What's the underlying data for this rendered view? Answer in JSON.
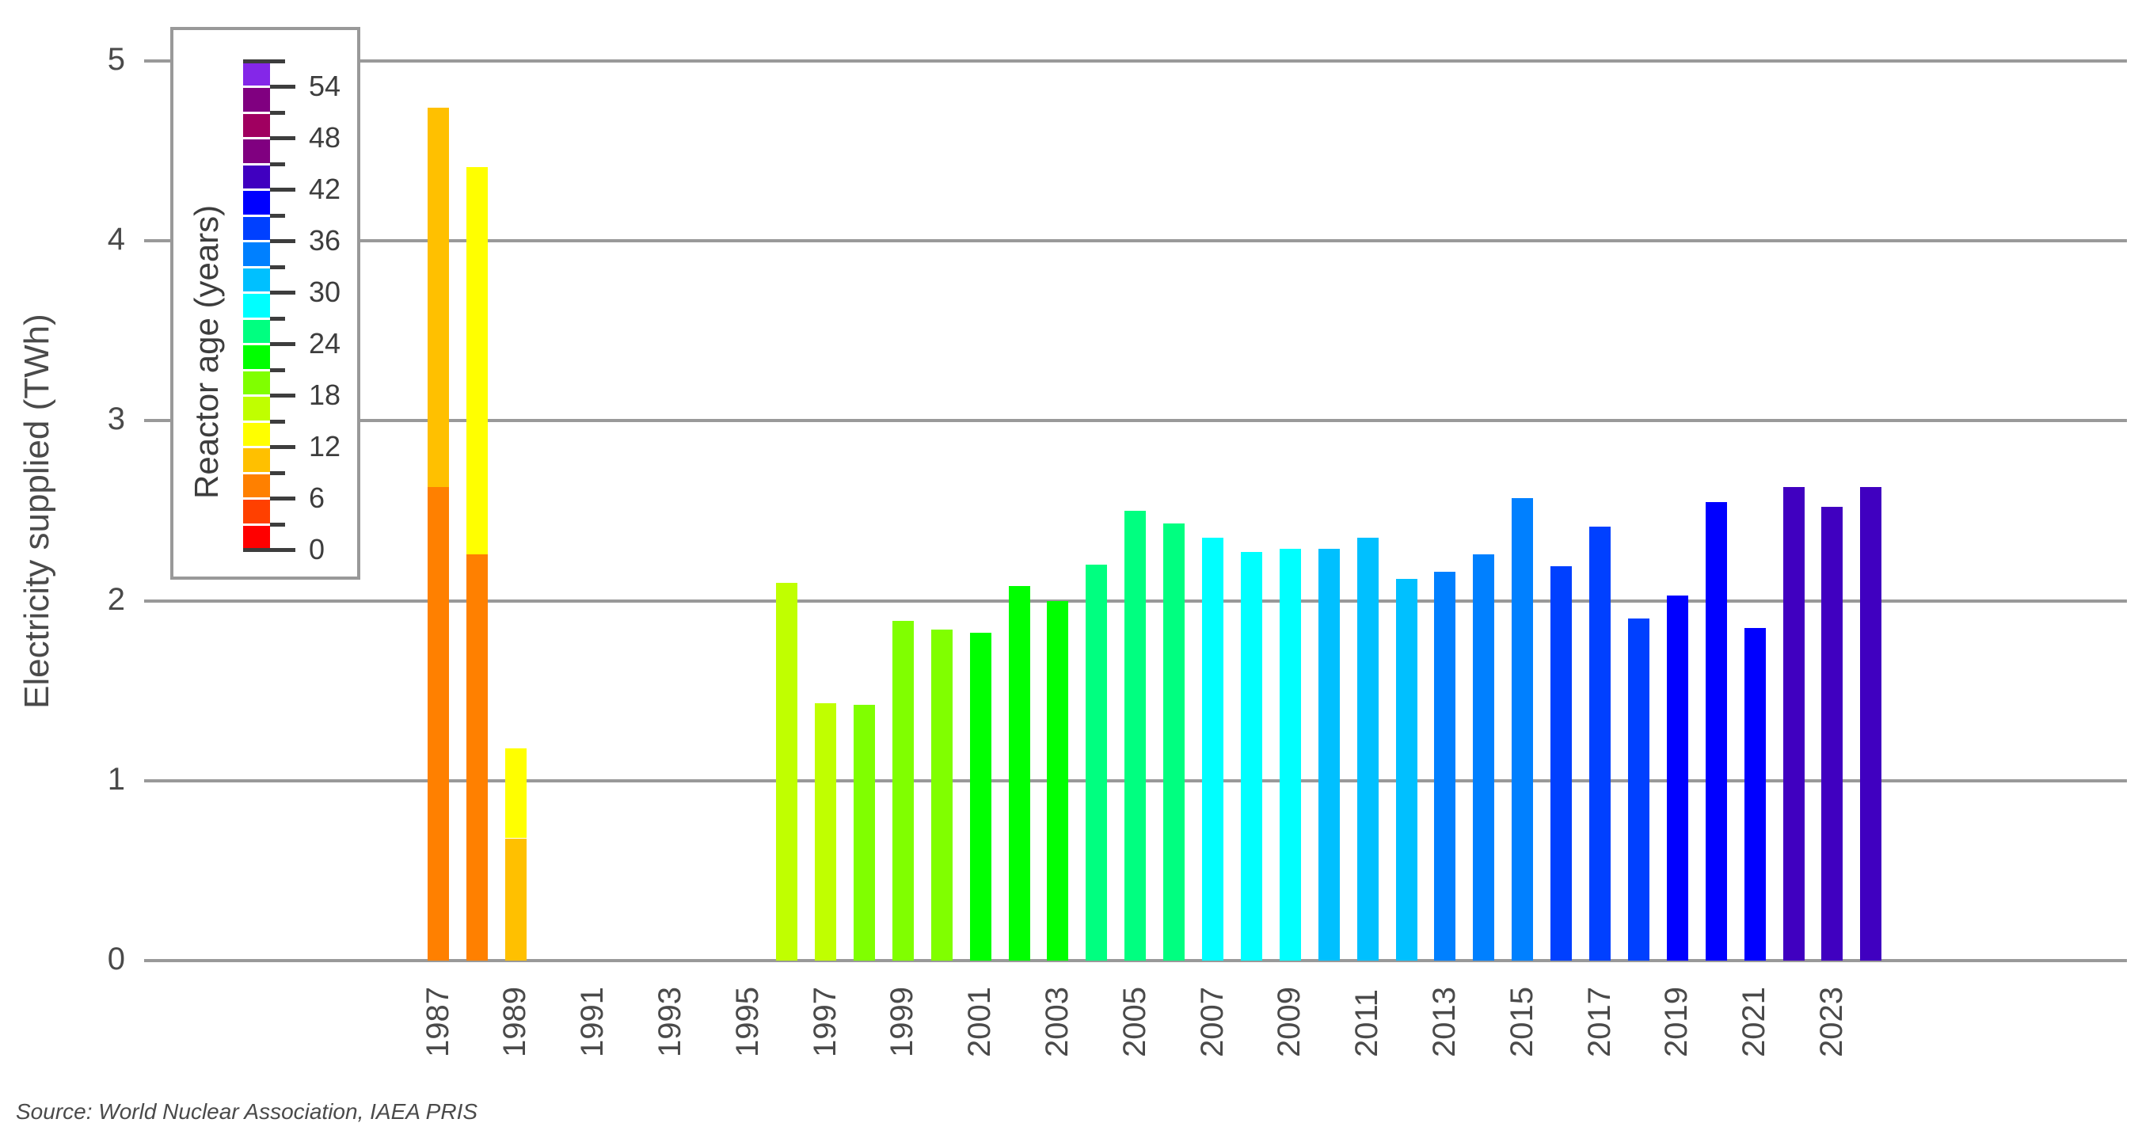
{
  "chart_data": {
    "type": "bar",
    "stacked": true,
    "title": "",
    "xlabel": "",
    "ylabel": "Electricity supplied (TWh)",
    "ylim": [
      0,
      5
    ],
    "yticks": [
      0,
      1,
      2,
      3,
      4,
      5
    ],
    "grid": true,
    "x_tick_labels": [
      "1987",
      "1989",
      "1991",
      "1993",
      "1995",
      "1997",
      "1999",
      "2001",
      "2003",
      "2005",
      "2007",
      "2009",
      "2011",
      "2013",
      "2015",
      "2017",
      "2019",
      "2021",
      "2023"
    ],
    "categories": [
      "1987",
      "1988",
      "1989",
      "1990",
      "1991",
      "1992",
      "1993",
      "1994",
      "1995",
      "1996",
      "1997",
      "1998",
      "1999",
      "2000",
      "2001",
      "2002",
      "2003",
      "2004",
      "2005",
      "2006",
      "2007",
      "2008",
      "2009",
      "2010",
      "2011",
      "2012",
      "2013",
      "2014",
      "2015",
      "2016",
      "2017",
      "2018",
      "2019",
      "2020",
      "2021",
      "2022",
      "2023",
      "2024"
    ],
    "bars": [
      {
        "year": "1987",
        "segments": [
          {
            "value": 2.63,
            "color": "#FF8000"
          },
          {
            "value": 2.11,
            "color": "#FFC000"
          }
        ],
        "total": 4.74
      },
      {
        "year": "1988",
        "segments": [
          {
            "value": 2.26,
            "color": "#FF8000"
          },
          {
            "value": 2.15,
            "color": "#FFFF00"
          }
        ],
        "total": 4.41
      },
      {
        "year": "1989",
        "segments": [
          {
            "value": 0.68,
            "color": "#FFC000"
          },
          {
            "value": 0.5,
            "color": "#FFFF00"
          }
        ],
        "total": 1.18
      },
      {
        "year": "1990",
        "segments": [],
        "total": 0
      },
      {
        "year": "1991",
        "segments": [],
        "total": 0
      },
      {
        "year": "1992",
        "segments": [],
        "total": 0
      },
      {
        "year": "1993",
        "segments": [],
        "total": 0
      },
      {
        "year": "1994",
        "segments": [],
        "total": 0
      },
      {
        "year": "1995",
        "segments": [],
        "total": 0
      },
      {
        "year": "1996",
        "segments": [
          {
            "value": 2.1,
            "color": "#C0FF00"
          }
        ],
        "total": 2.1
      },
      {
        "year": "1997",
        "segments": [
          {
            "value": 1.43,
            "color": "#C0FF00"
          }
        ],
        "total": 1.43
      },
      {
        "year": "1998",
        "segments": [
          {
            "value": 1.42,
            "color": "#80FF00"
          }
        ],
        "total": 1.42
      },
      {
        "year": "1999",
        "segments": [
          {
            "value": 1.89,
            "color": "#80FF00"
          }
        ],
        "total": 1.89
      },
      {
        "year": "2000",
        "segments": [
          {
            "value": 1.84,
            "color": "#80FF00"
          }
        ],
        "total": 1.84
      },
      {
        "year": "2001",
        "segments": [
          {
            "value": 1.82,
            "color": "#00FF00"
          }
        ],
        "total": 1.82
      },
      {
        "year": "2002",
        "segments": [
          {
            "value": 2.08,
            "color": "#00FF00"
          }
        ],
        "total": 2.08
      },
      {
        "year": "2003",
        "segments": [
          {
            "value": 2.0,
            "color": "#00FF00"
          }
        ],
        "total": 2.0
      },
      {
        "year": "2004",
        "segments": [
          {
            "value": 2.2,
            "color": "#00FF80"
          }
        ],
        "total": 2.2
      },
      {
        "year": "2005",
        "segments": [
          {
            "value": 2.5,
            "color": "#00FF80"
          }
        ],
        "total": 2.5
      },
      {
        "year": "2006",
        "segments": [
          {
            "value": 2.43,
            "color": "#00FF80"
          }
        ],
        "total": 2.43
      },
      {
        "year": "2007",
        "segments": [
          {
            "value": 2.35,
            "color": "#00FFFF"
          }
        ],
        "total": 2.35
      },
      {
        "year": "2008",
        "segments": [
          {
            "value": 2.27,
            "color": "#00FFFF"
          }
        ],
        "total": 2.27
      },
      {
        "year": "2009",
        "segments": [
          {
            "value": 2.29,
            "color": "#00FFFF"
          }
        ],
        "total": 2.29
      },
      {
        "year": "2010",
        "segments": [
          {
            "value": 2.29,
            "color": "#00C0FF"
          }
        ],
        "total": 2.29
      },
      {
        "year": "2011",
        "segments": [
          {
            "value": 2.35,
            "color": "#00C0FF"
          }
        ],
        "total": 2.35
      },
      {
        "year": "2012",
        "segments": [
          {
            "value": 2.12,
            "color": "#00C0FF"
          }
        ],
        "total": 2.12
      },
      {
        "year": "2013",
        "segments": [
          {
            "value": 2.16,
            "color": "#0080FF"
          }
        ],
        "total": 2.16
      },
      {
        "year": "2014",
        "segments": [
          {
            "value": 2.26,
            "color": "#0080FF"
          }
        ],
        "total": 2.26
      },
      {
        "year": "2015",
        "segments": [
          {
            "value": 2.57,
            "color": "#0080FF"
          }
        ],
        "total": 2.57
      },
      {
        "year": "2016",
        "segments": [
          {
            "value": 2.19,
            "color": "#0040FF"
          }
        ],
        "total": 2.19
      },
      {
        "year": "2017",
        "segments": [
          {
            "value": 2.41,
            "color": "#0040FF"
          }
        ],
        "total": 2.41
      },
      {
        "year": "2018",
        "segments": [
          {
            "value": 1.9,
            "color": "#0040FF"
          }
        ],
        "total": 1.9
      },
      {
        "year": "2019",
        "segments": [
          {
            "value": 2.03,
            "color": "#0000FF"
          }
        ],
        "total": 2.03
      },
      {
        "year": "2020",
        "segments": [
          {
            "value": 2.55,
            "color": "#0000FF"
          }
        ],
        "total": 2.55
      },
      {
        "year": "2021",
        "segments": [
          {
            "value": 1.85,
            "color": "#0000FF"
          }
        ],
        "total": 1.85
      },
      {
        "year": "2022",
        "segments": [
          {
            "value": 2.63,
            "color": "#4000C0"
          }
        ],
        "total": 2.63
      },
      {
        "year": "2023",
        "segments": [
          {
            "value": 2.52,
            "color": "#4000C0"
          }
        ],
        "total": 2.52
      },
      {
        "year": "2024",
        "segments": [
          {
            "value": 2.63,
            "color": "#4000C0"
          }
        ],
        "total": 2.63
      }
    ],
    "legend": {
      "title": "Reactor age (years)",
      "type": "colorbar",
      "position": "top-left inset",
      "tick_labels": [
        "0",
        "6",
        "12",
        "18",
        "24",
        "30",
        "36",
        "42",
        "48",
        "54"
      ],
      "bins": [
        {
          "from": 0,
          "to": 3,
          "color": "#FF0000"
        },
        {
          "from": 3,
          "to": 6,
          "color": "#FF4000"
        },
        {
          "from": 6,
          "to": 9,
          "color": "#FF8000"
        },
        {
          "from": 9,
          "to": 12,
          "color": "#FFC000"
        },
        {
          "from": 12,
          "to": 15,
          "color": "#FFFF00"
        },
        {
          "from": 15,
          "to": 18,
          "color": "#C0FF00"
        },
        {
          "from": 18,
          "to": 21,
          "color": "#80FF00"
        },
        {
          "from": 21,
          "to": 24,
          "color": "#00FF00"
        },
        {
          "from": 24,
          "to": 27,
          "color": "#00FF80"
        },
        {
          "from": 27,
          "to": 30,
          "color": "#00FFFF"
        },
        {
          "from": 30,
          "to": 33,
          "color": "#00C0FF"
        },
        {
          "from": 33,
          "to": 36,
          "color": "#0080FF"
        },
        {
          "from": 36,
          "to": 39,
          "color": "#0040FF"
        },
        {
          "from": 39,
          "to": 42,
          "color": "#0000FF"
        },
        {
          "from": 42,
          "to": 45,
          "color": "#4000C0"
        },
        {
          "from": 45,
          "to": 48,
          "color": "#800080"
        },
        {
          "from": 48,
          "to": 51,
          "color": "#A00060"
        },
        {
          "from": 51,
          "to": 54,
          "color": "#800080"
        },
        {
          "from": 54,
          "to": 57,
          "color": "#8427E8"
        }
      ]
    },
    "source": "Source: World Nuclear Association, IAEA PRIS"
  },
  "labels": {
    "ylabel": "Electricity supplied (TWh)",
    "legend_title": "Reactor age (years)",
    "source": "Source: World Nuclear Association, IAEA PRIS"
  },
  "colors": {
    "gridline": "#999999",
    "text": "#4a4a4a"
  }
}
